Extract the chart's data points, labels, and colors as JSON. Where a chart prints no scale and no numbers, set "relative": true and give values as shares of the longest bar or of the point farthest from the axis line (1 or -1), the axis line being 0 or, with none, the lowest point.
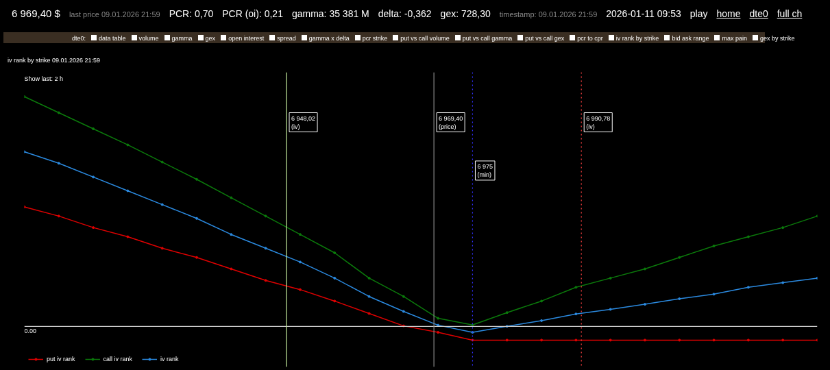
{
  "chart_data": {
    "type": "line",
    "title": "iv rank by strike 09.01.2026 21:59",
    "relative": true,
    "tick_labels": false,
    "marker": "circle",
    "legend": "bottom left",
    "grid": false,
    "categories": [
      null,
      null,
      null,
      null,
      null,
      null,
      null,
      null,
      null,
      null,
      null,
      null,
      null,
      null,
      null,
      null,
      null,
      null,
      null,
      null,
      null,
      null,
      null,
      null
    ],
    "series": [
      {
        "name": "put iv rank",
        "color": "#e00000",
        "values": [
          0.52,
          0.48,
          0.43,
          0.39,
          0.34,
          0.3,
          0.25,
          0.2,
          0.16,
          0.11,
          0.056,
          0.002,
          -0.026,
          -0.06,
          -0.06,
          -0.06,
          -0.06,
          -0.06,
          -0.06,
          -0.06,
          -0.06,
          -0.06,
          -0.06,
          -0.06
        ]
      },
      {
        "name": "call iv rank",
        "color": "#0b7a0b",
        "values": [
          1.0,
          0.93,
          0.86,
          0.79,
          0.715,
          0.64,
          0.56,
          0.48,
          0.4,
          0.32,
          0.21,
          0.13,
          0.035,
          0.006,
          0.06,
          0.11,
          0.17,
          0.21,
          0.25,
          0.3,
          0.35,
          0.39,
          0.43,
          0.48
        ]
      },
      {
        "name": "iv rank",
        "color": "#2b8ae0",
        "values": [
          0.76,
          0.71,
          0.65,
          0.59,
          0.53,
          0.47,
          0.4,
          0.34,
          0.28,
          0.21,
          0.13,
          0.065,
          0.005,
          -0.026,
          0.0,
          0.025,
          0.054,
          0.074,
          0.096,
          0.12,
          0.14,
          0.17,
          0.19,
          0.21
        ]
      }
    ],
    "ref_lines": [
      {
        "axis": "y",
        "value": 0,
        "label": "0.00",
        "color": "#cccccc",
        "line_style": "solid"
      }
    ],
    "annotations": [
      "6 969,40 $",
      "last price 09.01.2026 21:59",
      "PCR: 0,70",
      "PCR (oi): 0,21",
      "gamma: 35 381 M",
      "delta: -0,362",
      "gex: 728,30",
      "timestamp: 09.01.2026 21:59",
      "2026-01-11 09:53",
      "play",
      "home",
      "dte0",
      "full ch",
      "dte0:",
      "data table",
      "volume",
      "gamma",
      "gex",
      "open interest",
      "spread",
      "gamma x delta",
      "pcr strike",
      "put vs call volume",
      "put vs call gamma",
      "put vs call gex",
      "pcr to cpr",
      "iv rank by strike",
      "bid ask range",
      "max pain",
      "gex by strike",
      "Show last: 2 h",
      "6 948,02\n(iv)",
      "6 969,40\n(price)",
      "6 975\n(min)",
      "6 990,78\n(iv)"
    ]
  }
}
